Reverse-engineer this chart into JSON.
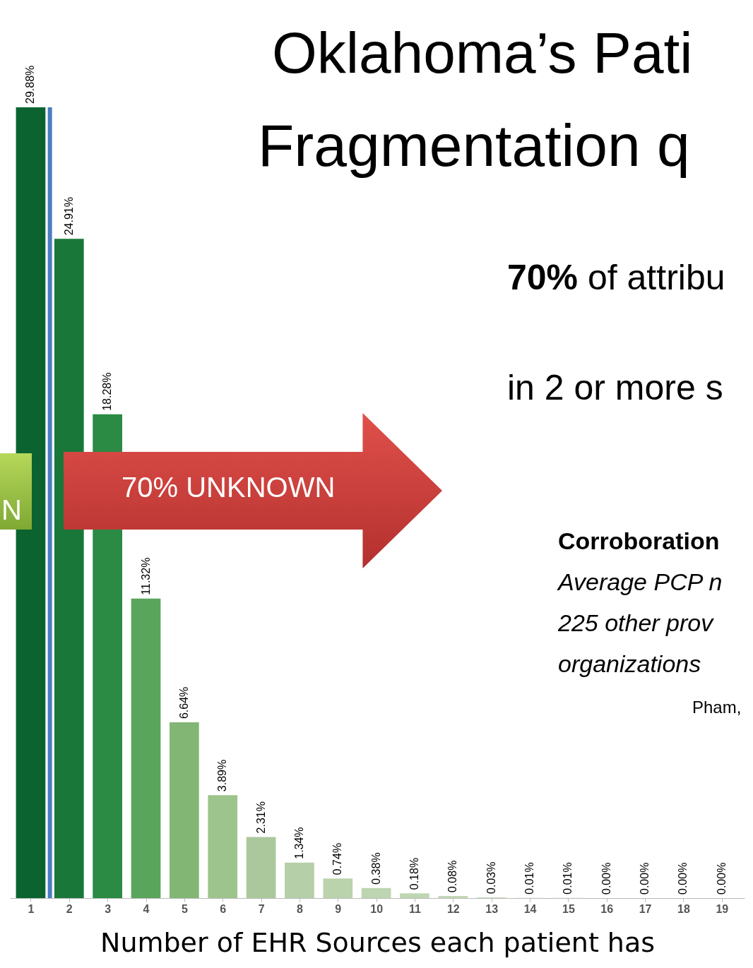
{
  "chart_data": {
    "type": "bar",
    "title": "Oklahoma’s Pati Fragmentation q",
    "xlabel": "Number of EHR Sources each patient has",
    "x": [
      1,
      2,
      3,
      4,
      5,
      6,
      7,
      8,
      9,
      10,
      11,
      12,
      13,
      14,
      15,
      16,
      17,
      18,
      19
    ],
    "xlim": [
      0.55,
      19.5
    ],
    "xticks": [
      1,
      2,
      3,
      4,
      5,
      6,
      7,
      8,
      9,
      10,
      11,
      12,
      13,
      14,
      15,
      16,
      17,
      18,
      19
    ],
    "values": [
      29.88,
      24.91,
      18.28,
      11.32,
      6.64,
      3.89,
      2.31,
      1.34,
      0.74,
      0.38,
      0.18,
      0.08,
      0.03,
      0.01,
      0.01,
      0,
      0,
      0,
      0
    ],
    "value_labels": [
      "29.88%",
      "24.91%",
      "18.28%",
      "11.32%",
      "6.64%",
      "3.89%",
      "2.31%",
      "1.34%",
      "0.74%",
      "0.38%",
      "0.18%",
      "0.08%",
      "0.03%",
      "0.01%",
      "0.01%",
      "0.00%",
      "0.00%",
      "0.00%",
      "0.00%"
    ],
    "colors": [
      "#0b6430",
      "#19773a",
      "#2b8a44",
      "#5aa55c",
      "#82b675",
      "#9cc48c",
      "#abc89c",
      "#b5cfa8",
      "#bad3ad",
      "#bdd5b1",
      "#bfd6b3",
      "#c1d7b5",
      "#c3d8b7",
      "#c5d9b9",
      "#c5d9b9",
      "#c5d9b9",
      "#c5d9b9",
      "#c5d9b9",
      "#c5d9b9"
    ],
    "ref_lines": [
      {
        "axis": "x",
        "value": 1.5,
        "color": "#4a7cc0"
      }
    ],
    "tick_labels": "x",
    "annotations": [
      "70% UNKNOWN",
      "N",
      "70% of attribu",
      "in 2 or more s",
      "Corroboration",
      "Average PCP n",
      "225 other prov",
      "organizations",
      "Pham,"
    ]
  }
}
